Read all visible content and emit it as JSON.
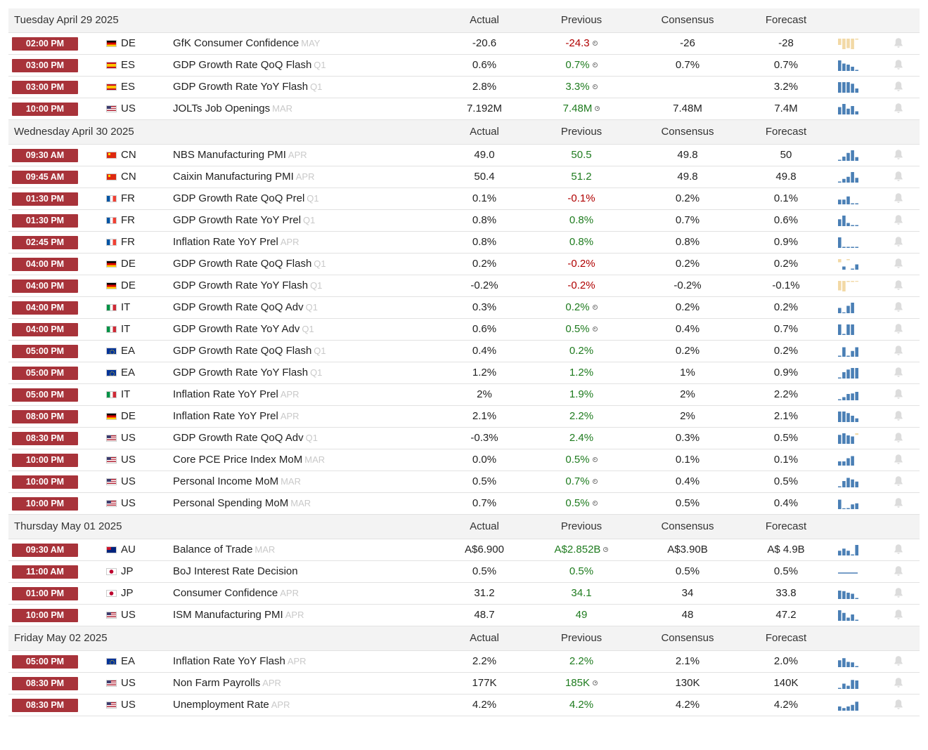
{
  "colors": {
    "time_badge": "#a8333a",
    "positive": "#1e7b1e",
    "negative": "#b00000",
    "spark_blue": "#4a7fb5",
    "spark_tan": "#f2d9a6"
  },
  "days": [
    {
      "date": "Tuesday April 29 2025",
      "col_actual": "Actual",
      "col_previous": "Previous",
      "col_consensus": "Consensus",
      "col_forecast": "Forecast",
      "events": [
        {
          "time": "02:00 PM",
          "flag": "de",
          "country": "DE",
          "event": "GfK Consumer Confidence",
          "period": "MAY",
          "actual": "-20.6",
          "previous": "-24.3",
          "prev_class": "neg",
          "revised": true,
          "consensus": "-26",
          "forecast": "-28",
          "spark": {
            "color": "tan",
            "values": [
              -0.6,
              -1,
              -0.9,
              -1,
              -0.1
            ]
          }
        },
        {
          "time": "03:00 PM",
          "flag": "es",
          "country": "ES",
          "event": "GDP Growth Rate QoQ Flash",
          "period": "Q1",
          "actual": "0.6%",
          "previous": "0.7%",
          "prev_class": "pos",
          "revised": true,
          "consensus": "0.7%",
          "forecast": "0.7%",
          "spark": {
            "color": "blue",
            "values": [
              1,
              0.7,
              0.6,
              0.4,
              0.1
            ]
          }
        },
        {
          "time": "03:00 PM",
          "flag": "es",
          "country": "ES",
          "event": "GDP Growth Rate YoY Flash",
          "period": "Q1",
          "actual": "2.8%",
          "previous": "3.3%",
          "prev_class": "pos",
          "revised": true,
          "consensus": "",
          "forecast": "3.2%",
          "spark": {
            "color": "blue",
            "values": [
              1,
              1,
              1,
              0.85,
              0.4
            ]
          }
        },
        {
          "time": "10:00 PM",
          "flag": "us",
          "country": "US",
          "event": "JOLTs Job Openings",
          "period": "MAR",
          "actual": "7.192M",
          "previous": "7.48M",
          "prev_class": "pos",
          "revised": true,
          "consensus": "7.48M",
          "forecast": "7.4M",
          "spark": {
            "color": "blue",
            "values": [
              0.7,
              1,
              0.55,
              0.8,
              0.3
            ]
          }
        }
      ]
    },
    {
      "date": "Wednesday April 30 2025",
      "col_actual": "Actual",
      "col_previous": "Previous",
      "col_consensus": "Consensus",
      "col_forecast": "Forecast",
      "events": [
        {
          "time": "09:30 AM",
          "flag": "cn",
          "country": "CN",
          "event": "NBS Manufacturing PMI",
          "period": "APR",
          "actual": "49.0",
          "previous": "50.5",
          "prev_class": "pos",
          "revised": false,
          "consensus": "49.8",
          "forecast": "50",
          "spark": {
            "color": "blue",
            "values": [
              0.1,
              0.4,
              0.75,
              1,
              0.35
            ]
          }
        },
        {
          "time": "09:45 AM",
          "flag": "cn",
          "country": "CN",
          "event": "Caixin Manufacturing PMI",
          "period": "APR",
          "actual": "50.4",
          "previous": "51.2",
          "prev_class": "pos",
          "revised": false,
          "consensus": "49.8",
          "forecast": "49.8",
          "spark": {
            "color": "blue",
            "values": [
              0.1,
              0.35,
              0.55,
              1,
              0.45
            ]
          }
        },
        {
          "time": "01:30 PM",
          "flag": "fr",
          "country": "FR",
          "event": "GDP Growth Rate QoQ Prel",
          "period": "Q1",
          "actual": "0.1%",
          "previous": "-0.1%",
          "prev_class": "neg",
          "revised": false,
          "consensus": "0.2%",
          "forecast": "0.1%",
          "spark": {
            "color": "blue",
            "values": [
              0.45,
              0.45,
              0.75,
              0.1,
              0.1
            ]
          }
        },
        {
          "time": "01:30 PM",
          "flag": "fr",
          "country": "FR",
          "event": "GDP Growth Rate YoY Prel",
          "period": "Q1",
          "actual": "0.8%",
          "previous": "0.8%",
          "prev_class": "pos",
          "revised": false,
          "consensus": "0.7%",
          "forecast": "0.6%",
          "spark": {
            "color": "blue",
            "values": [
              0.65,
              1,
              0.3,
              0.1,
              0.1
            ]
          }
        },
        {
          "time": "02:45 PM",
          "flag": "fr",
          "country": "FR",
          "event": "Inflation Rate YoY Prel",
          "period": "APR",
          "actual": "0.8%",
          "previous": "0.8%",
          "prev_class": "pos",
          "revised": false,
          "consensus": "0.8%",
          "forecast": "0.9%",
          "spark": {
            "color": "blue",
            "values": [
              1,
              0.1,
              0.1,
              0.1,
              0.1
            ]
          }
        },
        {
          "time": "04:00 PM",
          "flag": "de",
          "country": "DE",
          "event": "GDP Growth Rate QoQ Flash",
          "period": "Q1",
          "actual": "0.2%",
          "previous": "-0.2%",
          "prev_class": "neg",
          "revised": false,
          "consensus": "0.2%",
          "forecast": "0.2%",
          "spark": {
            "color": "mixed",
            "values": [
              -0.3,
              0.3,
              -0.1,
              0.1,
              0.5
            ]
          }
        },
        {
          "time": "04:00 PM",
          "flag": "de",
          "country": "DE",
          "event": "GDP Growth Rate YoY Flash",
          "period": "Q1",
          "actual": "-0.2%",
          "previous": "-0.2%",
          "prev_class": "neg",
          "revised": false,
          "consensus": "-0.2%",
          "forecast": "-0.1%",
          "spark": {
            "color": "tan",
            "values": [
              -0.9,
              -1,
              -0.1,
              -0.1,
              -0.05
            ]
          }
        },
        {
          "time": "04:00 PM",
          "flag": "it",
          "country": "IT",
          "event": "GDP Growth Rate QoQ Adv",
          "period": "Q1",
          "actual": "0.3%",
          "previous": "0.2%",
          "prev_class": "pos",
          "revised": true,
          "consensus": "0.2%",
          "forecast": "0.2%",
          "spark": {
            "color": "blue",
            "values": [
              0.5,
              0,
              0.7,
              1
            ]
          }
        },
        {
          "time": "04:00 PM",
          "flag": "it",
          "country": "IT",
          "event": "GDP Growth Rate YoY Adv",
          "period": "Q1",
          "actual": "0.6%",
          "previous": "0.5%",
          "prev_class": "pos",
          "revised": true,
          "consensus": "0.4%",
          "forecast": "0.7%",
          "spark": {
            "color": "blue",
            "values": [
              1,
              0.1,
              1,
              1
            ]
          }
        },
        {
          "time": "05:00 PM",
          "flag": "ea",
          "country": "EA",
          "event": "GDP Growth Rate QoQ Flash",
          "period": "Q1",
          "actual": "0.4%",
          "previous": "0.2%",
          "prev_class": "pos",
          "revised": false,
          "consensus": "0.2%",
          "forecast": "0.2%",
          "spark": {
            "color": "blue",
            "values": [
              0.1,
              0.9,
              0.1,
              0.55,
              0.9
            ]
          }
        },
        {
          "time": "05:00 PM",
          "flag": "ea",
          "country": "EA",
          "event": "GDP Growth Rate YoY Flash",
          "period": "Q1",
          "actual": "1.2%",
          "previous": "1.2%",
          "prev_class": "pos",
          "revised": false,
          "consensus": "1%",
          "forecast": "0.9%",
          "spark": {
            "color": "blue",
            "values": [
              0.1,
              0.6,
              0.85,
              1,
              1
            ]
          }
        },
        {
          "time": "05:00 PM",
          "flag": "it",
          "country": "IT",
          "event": "Inflation Rate YoY Prel",
          "period": "APR",
          "actual": "2%",
          "previous": "1.9%",
          "prev_class": "pos",
          "revised": false,
          "consensus": "2%",
          "forecast": "2.2%",
          "spark": {
            "color": "blue",
            "values": [
              0.1,
              0.3,
              0.6,
              0.65,
              0.8
            ]
          }
        },
        {
          "time": "08:00 PM",
          "flag": "de",
          "country": "DE",
          "event": "Inflation Rate YoY Prel",
          "period": "APR",
          "actual": "2.1%",
          "previous": "2.2%",
          "prev_class": "pos",
          "revised": false,
          "consensus": "2%",
          "forecast": "2.1%",
          "spark": {
            "color": "blue",
            "values": [
              1,
              1,
              0.85,
              0.6,
              0.35
            ]
          }
        },
        {
          "time": "08:30 PM",
          "flag": "us",
          "country": "US",
          "event": "GDP Growth Rate QoQ Adv",
          "period": "Q1",
          "actual": "-0.3%",
          "previous": "2.4%",
          "prev_class": "pos",
          "revised": false,
          "consensus": "0.3%",
          "forecast": "0.5%",
          "spark": {
            "color": "mixed",
            "values": [
              0.85,
              1,
              0.8,
              0.7,
              -0.15
            ]
          }
        },
        {
          "time": "10:00 PM",
          "flag": "us",
          "country": "US",
          "event": "Core PCE Price Index MoM",
          "period": "MAR",
          "actual": "0.0%",
          "previous": "0.5%",
          "prev_class": "pos",
          "revised": true,
          "consensus": "0.1%",
          "forecast": "0.1%",
          "spark": {
            "color": "blue",
            "values": [
              0.4,
              0.4,
              0.7,
              0.9
            ]
          }
        },
        {
          "time": "10:00 PM",
          "flag": "us",
          "country": "US",
          "event": "Personal Income MoM",
          "period": "MAR",
          "actual": "0.5%",
          "previous": "0.7%",
          "prev_class": "pos",
          "revised": true,
          "consensus": "0.4%",
          "forecast": "0.5%",
          "spark": {
            "color": "blue",
            "values": [
              0.1,
              0.6,
              0.9,
              0.75,
              0.55
            ]
          }
        },
        {
          "time": "10:00 PM",
          "flag": "us",
          "country": "US",
          "event": "Personal Spending MoM",
          "period": "MAR",
          "actual": "0.7%",
          "previous": "0.5%",
          "prev_class": "pos",
          "revised": true,
          "consensus": "0.5%",
          "forecast": "0.4%",
          "spark": {
            "color": "blue",
            "values": [
              0.9,
              0,
              0.1,
              0.45,
              0.55
            ]
          }
        }
      ]
    },
    {
      "date": "Thursday May 01 2025",
      "col_actual": "Actual",
      "col_previous": "Previous",
      "col_consensus": "Consensus",
      "col_forecast": "Forecast",
      "events": [
        {
          "time": "09:30 AM",
          "flag": "au",
          "country": "AU",
          "event": "Balance of Trade",
          "period": "MAR",
          "actual": "A$6.900",
          "previous": "A$2.852B",
          "prev_class": "pos",
          "revised": true,
          "consensus": "A$3.90B",
          "forecast": "A$ 4.9B",
          "spark": {
            "color": "blue",
            "values": [
              0.45,
              0.65,
              0.45,
              0.1,
              1
            ]
          }
        },
        {
          "time": "11:00 AM",
          "flag": "jp",
          "country": "JP",
          "event": "BoJ Interest Rate Decision",
          "period": "",
          "actual": "0.5%",
          "previous": "0.5%",
          "prev_class": "pos",
          "revised": false,
          "consensus": "0.5%",
          "forecast": "0.5%",
          "spark": {
            "color": "flat",
            "values": [
              0.08,
              0.08,
              0.08,
              0.08,
              0.08
            ]
          }
        },
        {
          "time": "01:00 PM",
          "flag": "jp",
          "country": "JP",
          "event": "Consumer Confidence",
          "period": "APR",
          "actual": "31.2",
          "previous": "34.1",
          "prev_class": "pos",
          "revised": false,
          "consensus": "34",
          "forecast": "33.8",
          "spark": {
            "color": "blue",
            "values": [
              0.8,
              0.75,
              0.6,
              0.5,
              0.1
            ]
          }
        },
        {
          "time": "10:00 PM",
          "flag": "us",
          "country": "US",
          "event": "ISM Manufacturing PMI",
          "period": "APR",
          "actual": "48.7",
          "previous": "49",
          "prev_class": "pos",
          "revised": false,
          "consensus": "48",
          "forecast": "47.2",
          "spark": {
            "color": "blue",
            "values": [
              1,
              0.75,
              0.3,
              0.6,
              0.1
            ]
          }
        }
      ]
    },
    {
      "date": "Friday May 02 2025",
      "col_actual": "Actual",
      "col_previous": "Previous",
      "col_consensus": "Consensus",
      "col_forecast": "Forecast",
      "events": [
        {
          "time": "05:00 PM",
          "flag": "ea",
          "country": "EA",
          "event": "Inflation Rate YoY Flash",
          "period": "APR",
          "actual": "2.2%",
          "previous": "2.2%",
          "prev_class": "pos",
          "revised": false,
          "consensus": "2.1%",
          "forecast": "2.0%",
          "spark": {
            "color": "blue",
            "values": [
              0.65,
              0.85,
              0.5,
              0.45,
              0.1
            ]
          }
        },
        {
          "time": "08:30 PM",
          "flag": "us",
          "country": "US",
          "event": "Non Farm Payrolls",
          "period": "APR",
          "actual": "177K",
          "previous": "185K",
          "prev_class": "pos",
          "revised": true,
          "consensus": "130K",
          "forecast": "140K",
          "spark": {
            "color": "blue",
            "values": [
              0.1,
              0.5,
              0.3,
              0.85,
              0.8
            ]
          }
        },
        {
          "time": "08:30 PM",
          "flag": "us",
          "country": "US",
          "event": "Unemployment Rate",
          "period": "APR",
          "actual": "4.2%",
          "previous": "4.2%",
          "prev_class": "pos",
          "revised": false,
          "consensus": "4.2%",
          "forecast": "4.2%",
          "spark": {
            "color": "blue",
            "values": [
              0.4,
              0.25,
              0.4,
              0.55,
              0.85
            ]
          }
        }
      ]
    }
  ]
}
